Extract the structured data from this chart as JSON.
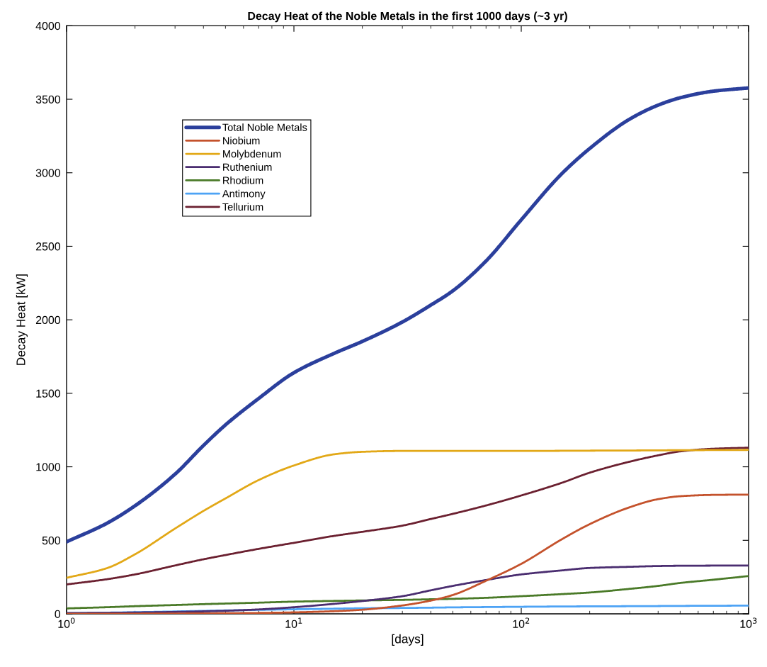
{
  "chart_data": {
    "type": "line",
    "title": "Decay Heat of the Noble Metals in the first 1000 days (~3 yr)",
    "xlabel": "[days]",
    "ylabel": "Decay Heat [kW]",
    "log": "x",
    "xlim": [
      1,
      1000
    ],
    "xticks": [
      {
        "value": 1,
        "label": "10$^{0}$"
      },
      {
        "value": 10,
        "label": "10$^{1}$"
      },
      {
        "value": 100,
        "label": "10$^{2}$"
      },
      {
        "value": 1000,
        "label": "10$^{3}$"
      }
    ],
    "ylim": [
      0,
      4000
    ],
    "yticks": [
      0,
      500,
      1000,
      1500,
      2000,
      2500,
      3000,
      3500,
      4000
    ],
    "legend": "top left",
    "x": [
      1,
      1.5,
      2,
      3,
      4,
      5,
      7,
      10,
      15,
      20,
      30,
      40,
      50,
      70,
      100,
      150,
      200,
      300,
      400,
      500,
      700,
      1000
    ],
    "series": [
      {
        "name": "Total Noble Metals",
        "color": "#2b3f9c",
        "values": [
          490,
          615,
          735,
          950,
          1145,
          1285,
          1465,
          1640,
          1771,
          1853,
          1985,
          2100,
          2197,
          2400,
          2680,
          2990,
          3165,
          3365,
          3460,
          3510,
          3555,
          3577
        ]
      },
      {
        "name": "Niobium",
        "color": "#c4522c",
        "values": [
          0,
          0,
          1,
          2,
          3,
          4,
          6,
          10,
          18,
          28,
          57,
          90,
          128,
          225,
          340,
          505,
          610,
          725,
          780,
          800,
          809,
          811
        ]
      },
      {
        "name": "Molybdenum",
        "color": "#e2a817",
        "values": [
          245,
          310,
          405,
          580,
          700,
          785,
          910,
          1009,
          1085,
          1102,
          1108,
          1108,
          1108,
          1108,
          1108,
          1109,
          1110,
          1111,
          1112,
          1113,
          1114,
          1115
        ]
      },
      {
        "name": "Ruthenium",
        "color": "#4a2d70",
        "values": [
          5,
          7,
          9,
          13,
          17,
          21,
          30,
          45,
          68,
          87,
          120,
          160,
          190,
          230,
          268,
          295,
          312,
          320,
          325,
          327,
          328,
          329
        ]
      },
      {
        "name": "Rhodium",
        "color": "#4a7a28",
        "values": [
          37,
          45,
          52,
          60,
          66,
          70,
          76,
          83,
          88,
          91,
          95,
          99,
          102,
          109,
          120,
          134,
          145,
          170,
          190,
          210,
          232,
          257
        ]
      },
      {
        "name": "Antimony",
        "color": "#4da3f5",
        "values": [
          5,
          8,
          11,
          16,
          20,
          23,
          27,
          31,
          35,
          38,
          40,
          42,
          44,
          46,
          48,
          50,
          51,
          52,
          53,
          54,
          55,
          56
        ]
      },
      {
        "name": "Tellurium",
        "color": "#6b2030",
        "values": [
          200,
          235,
          268,
          329,
          371,
          400,
          442,
          483,
          530,
          558,
          600,
          645,
          680,
          737,
          805,
          890,
          960,
          1035,
          1078,
          1105,
          1123,
          1130
        ]
      }
    ]
  }
}
